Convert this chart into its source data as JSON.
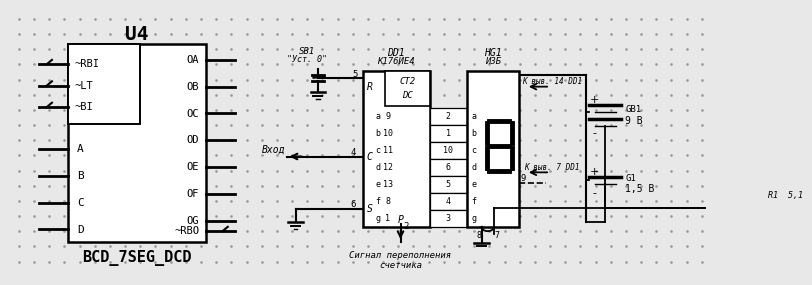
{
  "bg_color": "#e8e8e8",
  "dot_color": "#999999",
  "line_color": "#000000",
  "title_u4": "U4",
  "title_bcd": "BCD_7SEG_DCD",
  "left_inputs": [
    "~RBI",
    "~LT",
    "~BI"
  ],
  "bottom_inputs": [
    "A",
    "B",
    "C",
    "D"
  ],
  "right_outputs": [
    "OA",
    "OB",
    "OC",
    "OD",
    "OE",
    "OF",
    "OG"
  ],
  "rbo_label": "~RBO",
  "sb1_label": "SB1",
  "sb1_sub": "\"Уст. 0\"",
  "dd1_label": "DD1",
  "dd1_sub": "К176ИЕ4",
  "hg1_label": "НG1",
  "hg1_sub": "И3Б",
  "k_vyvod14": "К выв. 14 DD1",
  "k_vyvod7": "К выв. 7 DD1",
  "vhod_label": "Вход",
  "signal_label": "Сигнал переполнения\nсчетчика",
  "gb1_label": "GB1",
  "gb1_volt": "9 В",
  "g1_label": "G1",
  "g1_volt": "1,5 В",
  "r1_label": "R1  5,1",
  "ct2_label": "СТ2",
  "dc_label": "DC",
  "pin_r": "R",
  "pin_s": "S",
  "pin_c": "C",
  "pin_p": "P",
  "seg_labels_left": [
    "a",
    "b",
    "c",
    "d",
    "e",
    "f",
    "g"
  ],
  "seg_labels_right": [
    "a",
    "b",
    "c",
    "d",
    "e",
    "f",
    "g"
  ],
  "seg_nums_left": [
    "9",
    "10",
    "11",
    "12",
    "13",
    "8",
    "1"
  ],
  "seg_nums_right": [
    "2",
    "1",
    "10",
    "6",
    "5",
    "4",
    "3"
  ],
  "pin5": "5",
  "pin6": "6",
  "pin4": "4",
  "pin9": "9",
  "pin8": "8",
  "pin7": "7",
  "pin2": "2"
}
